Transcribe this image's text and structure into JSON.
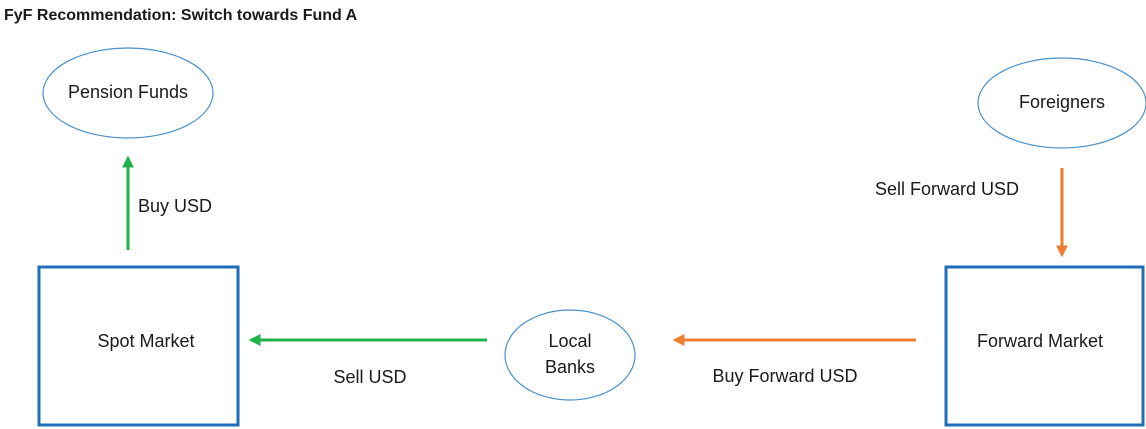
{
  "header": {
    "title": "FyF Recommendation: Switch towards Fund A"
  },
  "nodes": [
    {
      "label": "Pension Funds"
    },
    {
      "label": "Foreigners"
    },
    {
      "label": "Spot Market"
    },
    {
      "label": "Local Banks"
    },
    {
      "label": "Forward Market"
    }
  ],
  "edges": [
    {
      "label": "Buy USD"
    },
    {
      "label": "Sell Forward USD"
    },
    {
      "label": "Buy Forward USD"
    },
    {
      "label": "Sell USD"
    }
  ]
}
